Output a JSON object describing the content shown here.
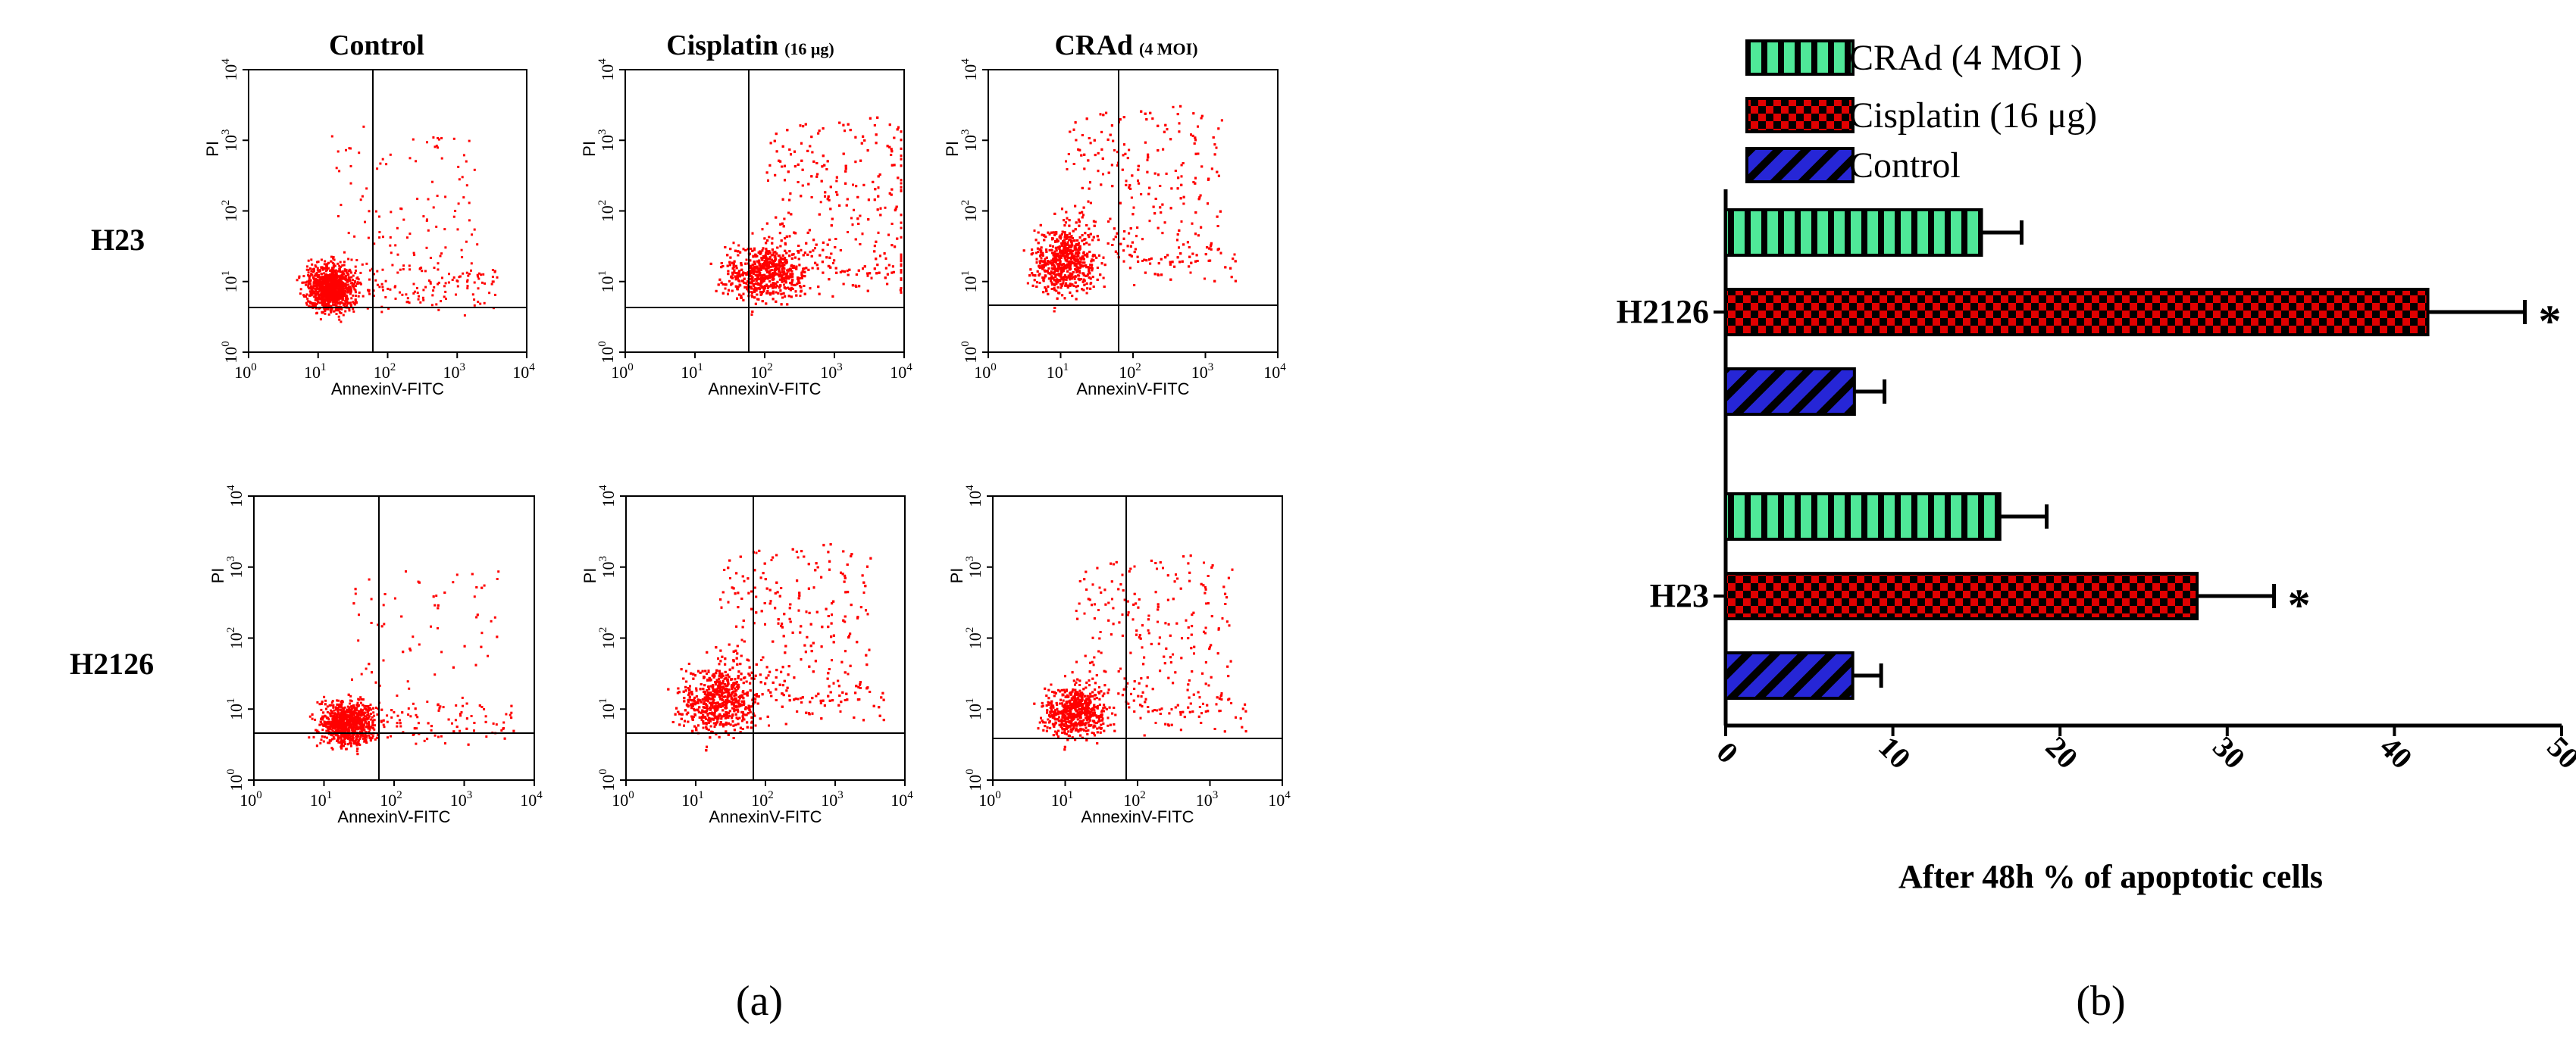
{
  "panel_a": {
    "label": "(a)",
    "columns": [
      {
        "name": "Control",
        "dose": ""
      },
      {
        "name": "Cisplatin",
        "dose": "(16 μg)"
      },
      {
        "name": "CRAd",
        "dose": "(4 MOI)"
      }
    ],
    "rows": [
      "H23",
      "H2126"
    ],
    "x_axis_title": "AnnexinV-FITC",
    "y_axis_title": "PI",
    "tick_labels": [
      "10",
      "10",
      "10",
      "10",
      "10"
    ],
    "tick_exponents": [
      "0",
      "1",
      "2",
      "3",
      "4"
    ],
    "dot_color": "#ff0000",
    "quadrant_line_color": "#000000"
  },
  "panel_b": {
    "label": "(b)",
    "significance_marker": "*"
  },
  "chart_data": {
    "type": "bar",
    "orientation": "horizontal",
    "title": "",
    "xlabel": "After 48h % of apoptotic cells",
    "ylabel": "",
    "categories": [
      "H2126",
      "H23"
    ],
    "xlim": [
      0,
      50
    ],
    "xticks": [
      "0",
      "10",
      "20",
      "30",
      "40",
      "50"
    ],
    "legend_position": "top",
    "series": [
      {
        "name": "CRAd (4 MOI )",
        "values": [
          15.3,
          16.4
        ],
        "errors": [
          2.4,
          2.8
        ],
        "color": "#4fe898",
        "pattern": "vertical-stripes",
        "significant": [
          false,
          false
        ]
      },
      {
        "name": "Cisplatin (16 μg)",
        "values": [
          42.0,
          28.2
        ],
        "errors": [
          5.8,
          4.6
        ],
        "color": "#e00000",
        "pattern": "checkerboard",
        "significant": [
          true,
          true
        ]
      },
      {
        "name": "Control",
        "values": [
          7.7,
          7.6
        ],
        "errors": [
          1.8,
          1.7
        ],
        "color": "#2626d6",
        "pattern": "diagonal-stripes",
        "significant": [
          false,
          false
        ]
      }
    ]
  }
}
